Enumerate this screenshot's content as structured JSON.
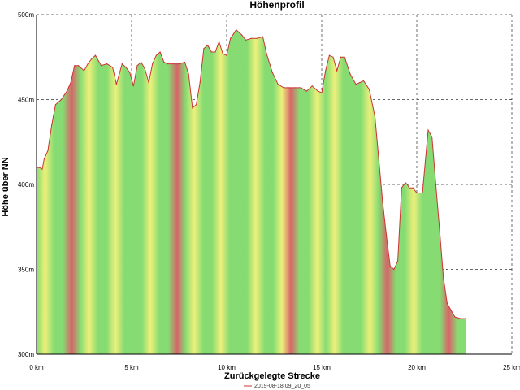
{
  "chart_data": {
    "type": "area",
    "title": "Höhenprofil",
    "xlabel": "Zurückgelegte Strecke",
    "ylabel": "Höhe über NN",
    "xlim": [
      0,
      25
    ],
    "ylim": [
      300,
      500
    ],
    "x_ticks": [
      0,
      5,
      10,
      15,
      20,
      25
    ],
    "x_tick_labels": [
      "0 km",
      "5 km",
      "10 km",
      "15 km",
      "20 km",
      "25 km"
    ],
    "y_ticks": [
      300,
      350,
      400,
      450,
      500
    ],
    "y_tick_labels": [
      "300m",
      "350m",
      "400m",
      "450m",
      "500m"
    ],
    "grid": true,
    "legend_position": "bottom",
    "series": [
      {
        "name": "2019-08-18 09_20_05",
        "color": "#cc3333",
        "x": [
          0.0,
          0.15,
          0.3,
          0.4,
          0.6,
          0.8,
          1.0,
          1.3,
          1.6,
          1.8,
          2.0,
          2.2,
          2.5,
          2.7,
          2.9,
          3.1,
          3.4,
          3.7,
          4.0,
          4.2,
          4.5,
          4.7,
          4.9,
          5.1,
          5.3,
          5.5,
          5.7,
          5.9,
          6.1,
          6.3,
          6.5,
          6.7,
          6.9,
          7.2,
          7.5,
          7.8,
          8.0,
          8.2,
          8.4,
          8.6,
          8.8,
          9.0,
          9.2,
          9.4,
          9.6,
          9.8,
          10.0,
          10.2,
          10.5,
          10.8,
          11.0,
          11.3,
          11.6,
          11.9,
          12.1,
          12.4,
          12.7,
          13.0,
          13.3,
          13.6,
          13.9,
          14.2,
          14.5,
          14.8,
          15.0,
          15.2,
          15.4,
          15.6,
          15.8,
          16.0,
          16.2,
          16.5,
          16.8,
          17.0,
          17.2,
          17.5,
          17.8,
          18.0,
          18.2,
          18.4,
          18.6,
          18.8,
          19.0,
          19.2,
          19.4,
          19.5,
          19.6,
          19.8,
          20.0,
          20.3,
          20.5,
          20.6,
          20.8,
          21.0,
          21.2,
          21.4,
          21.6,
          21.8,
          22.0,
          22.3,
          22.6
        ],
        "y": [
          410,
          410,
          409,
          415,
          420,
          435,
          447,
          450,
          455,
          460,
          470,
          470,
          467,
          471,
          474,
          476,
          470,
          471,
          469,
          459,
          471,
          469,
          466,
          458,
          470,
          472,
          468,
          460,
          471,
          476,
          478,
          472,
          471,
          471,
          471,
          472,
          465,
          445,
          447,
          460,
          480,
          482,
          478,
          478,
          484,
          477,
          476,
          486,
          491,
          488,
          485,
          486,
          486,
          487,
          477,
          466,
          459,
          457,
          457,
          457,
          457,
          455,
          458,
          455,
          454,
          467,
          476,
          475,
          467,
          475,
          475,
          465,
          459,
          460,
          461,
          456,
          440,
          415,
          390,
          370,
          352,
          350,
          355,
          398,
          401,
          400,
          398,
          398,
          395,
          395,
          420,
          432,
          428,
          400,
          373,
          345,
          330,
          326,
          322,
          321,
          321
        ]
      }
    ]
  }
}
